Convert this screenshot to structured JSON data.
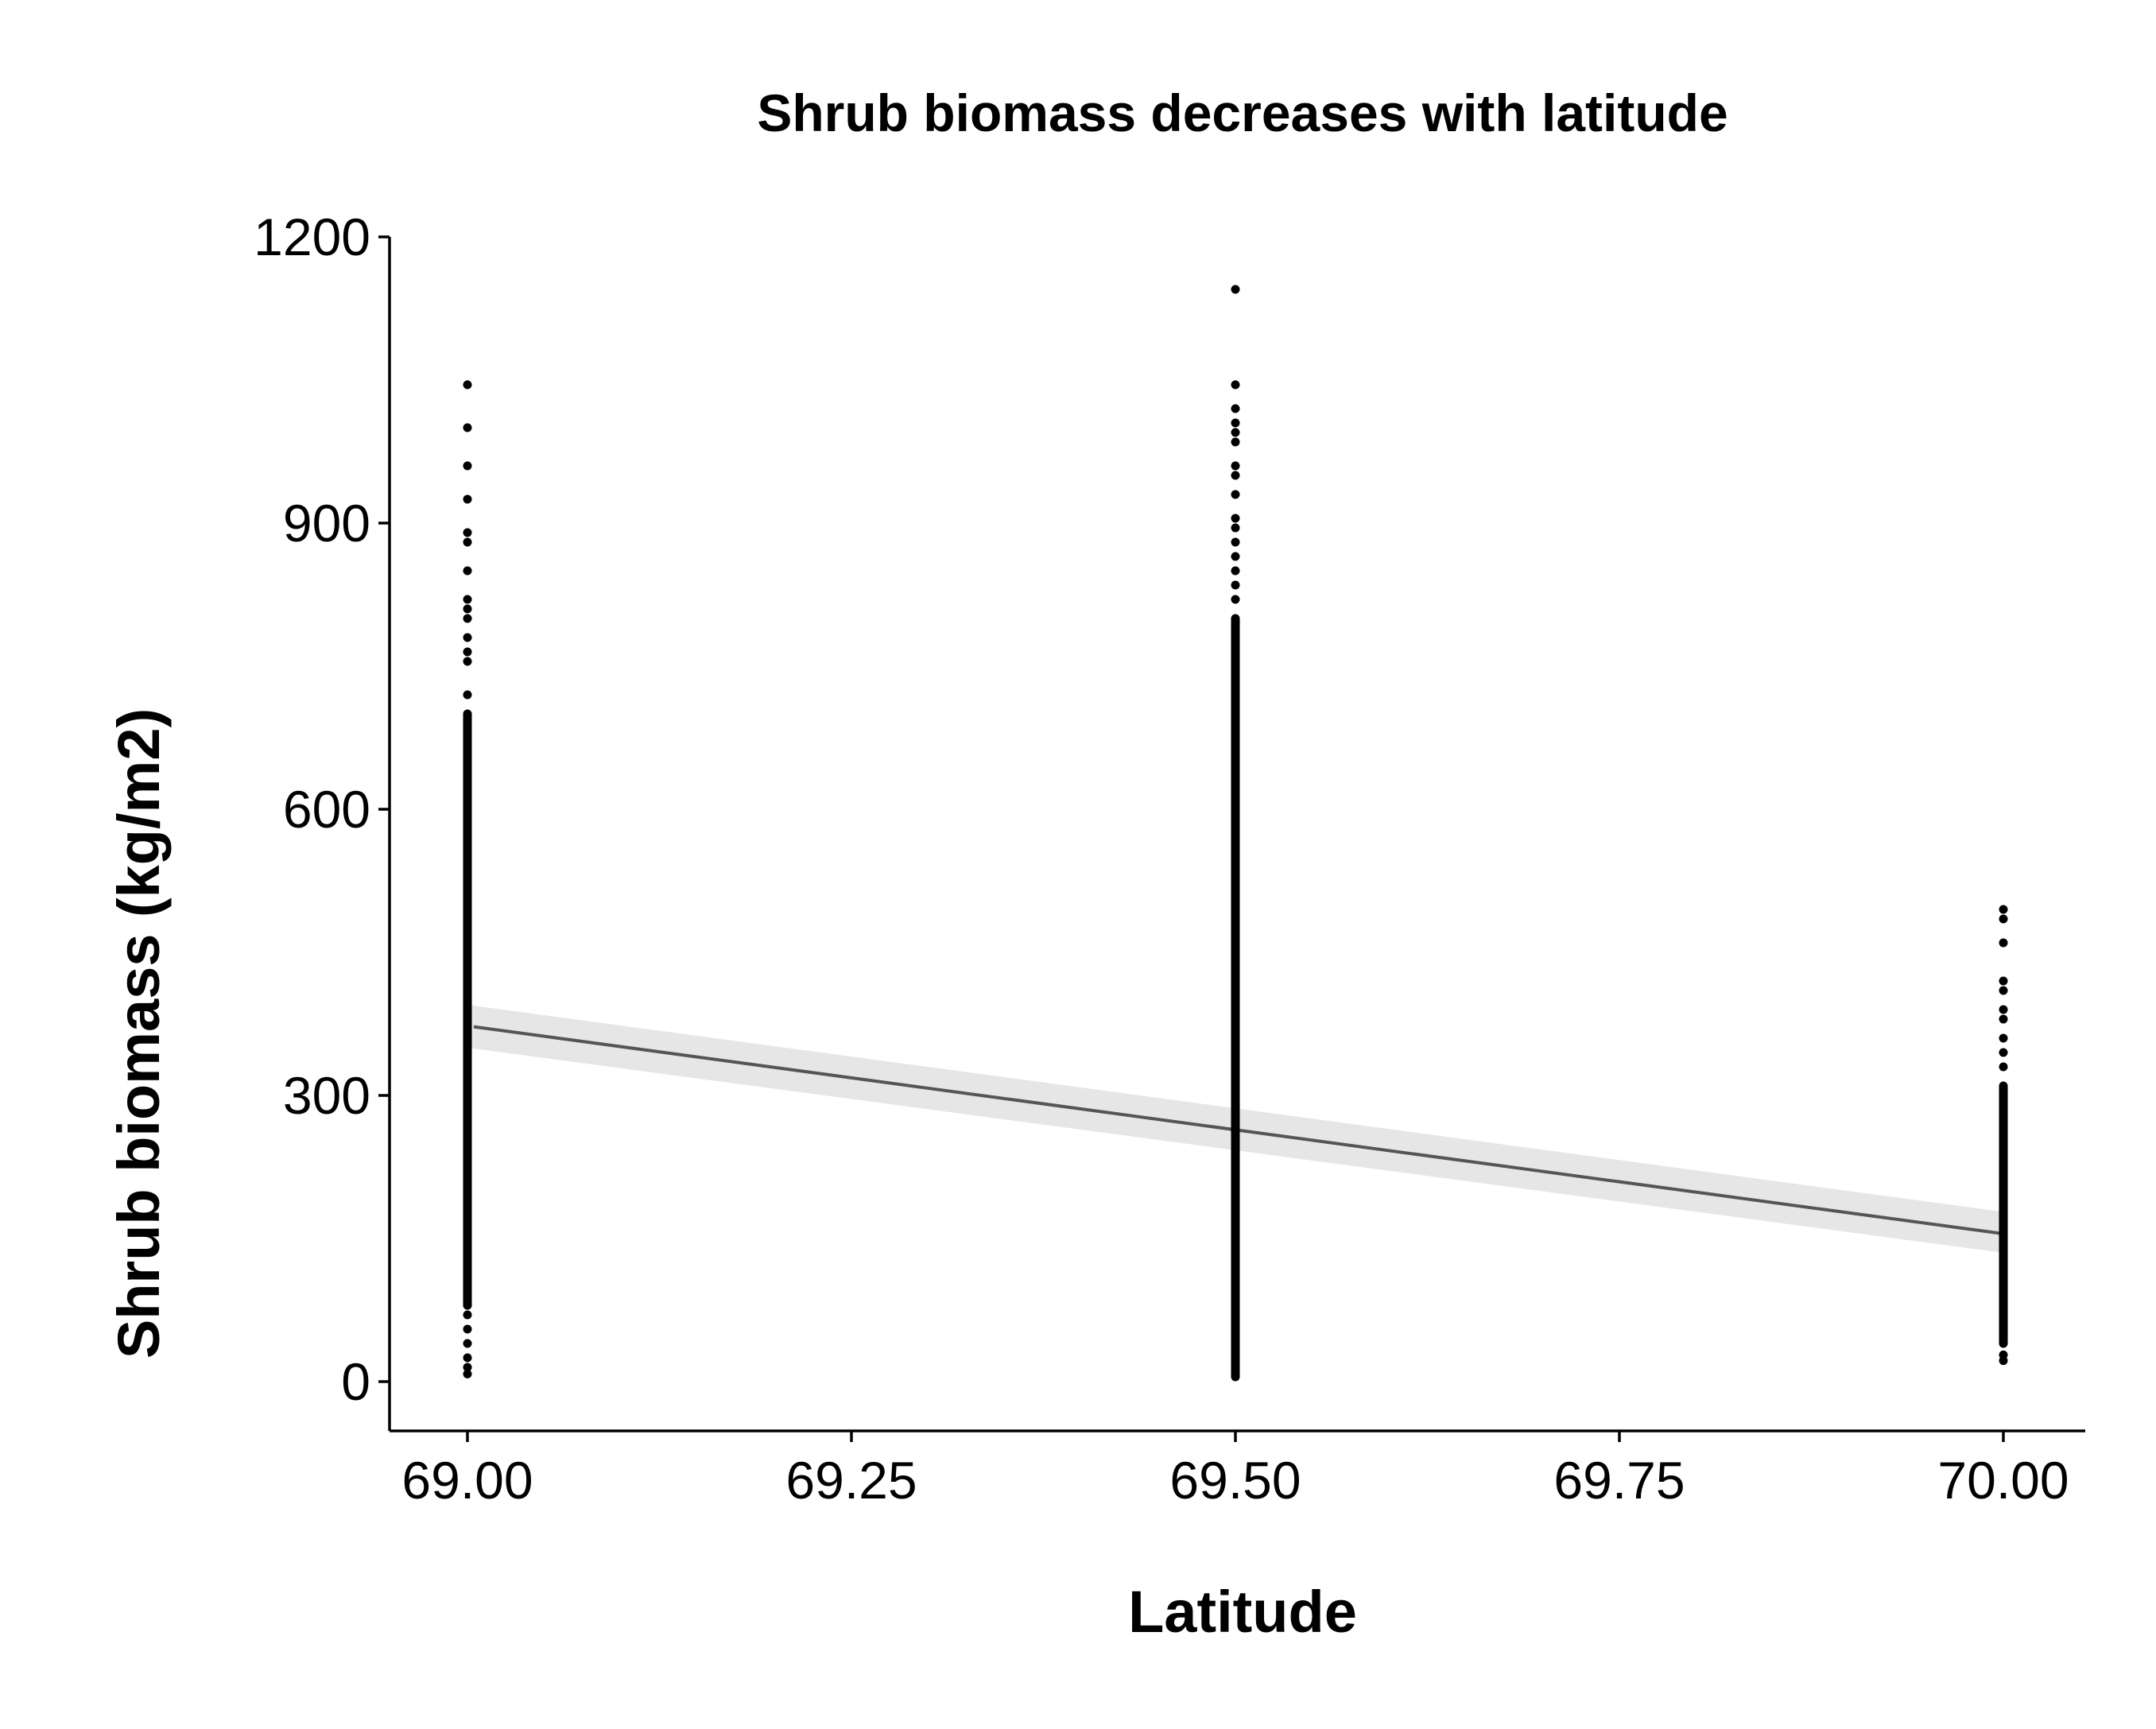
{
  "chart_data": {
    "type": "scatter",
    "title": "Shrub biomass decreases with latitude",
    "xlabel": "Latitude",
    "ylabel": "Shrub biomass (kg/m2)",
    "xlim": [
      68.9,
      70.1
    ],
    "ylim": [
      -50,
      1200
    ],
    "x_ticks": [
      69.0,
      69.25,
      69.5,
      69.75,
      70.0
    ],
    "x_tick_labels": [
      "69.00",
      "69.25",
      "69.50",
      "69.75",
      "70.00"
    ],
    "y_ticks": [
      0,
      300,
      600,
      900,
      1200
    ],
    "y_tick_labels": [
      "0",
      "300",
      "600",
      "900",
      "1200"
    ],
    "grid": false,
    "legend": "none",
    "point_color": "#000000",
    "series": [
      {
        "x": 69.0,
        "dense_range": [
          80,
          700
        ],
        "values": [
          8,
          15,
          25,
          40,
          55,
          70,
          80,
          720,
          755,
          765,
          780,
          800,
          810,
          820,
          850,
          880,
          890,
          925,
          960,
          1000,
          1045
        ]
      },
      {
        "x": 69.5,
        "dense_range": [
          5,
          800
        ],
        "values": [
          820,
          835,
          850,
          865,
          880,
          895,
          905,
          930,
          950,
          960,
          985,
          995,
          1005,
          1020,
          1045,
          1145
        ]
      },
      {
        "x": 70.0,
        "dense_range": [
          40,
          310
        ],
        "values": [
          22,
          28,
          330,
          345,
          360,
          380,
          390,
          410,
          420,
          460,
          485,
          495
        ]
      }
    ],
    "trend_line": {
      "x": [
        69.0,
        70.0
      ],
      "y": [
        372,
        155
      ],
      "ci_lower": [
        350,
        135
      ],
      "ci_upper": [
        395,
        178
      ],
      "line_color": "#555555",
      "band_color": "#e6e6e6"
    }
  }
}
